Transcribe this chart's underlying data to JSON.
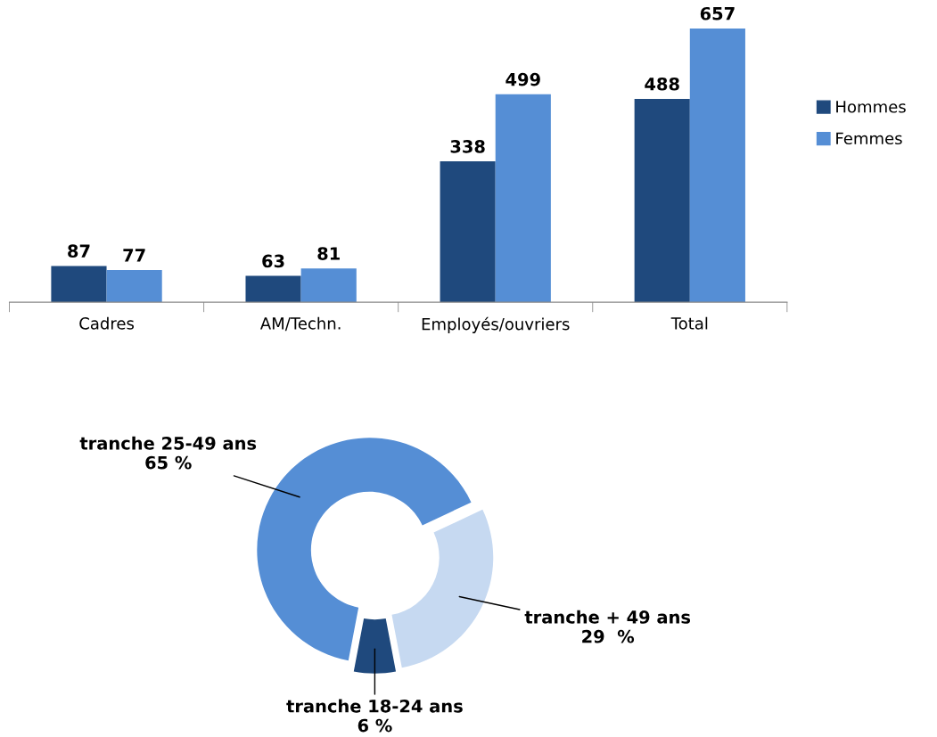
{
  "chart_data": [
    {
      "type": "bar",
      "categories": [
        "Cadres",
        "AM/Techn.",
        "Employés/ouvriers",
        "Total"
      ],
      "series": [
        {
          "name": "Hommes",
          "color": "#1f497d",
          "values": [
            87,
            63,
            338,
            488
          ]
        },
        {
          "name": "Femmes",
          "color": "#558ed5",
          "values": [
            77,
            81,
            499,
            657
          ]
        }
      ],
      "data_labels": true,
      "legend": "right",
      "tick_labels": "x"
    },
    {
      "type": "donut",
      "categories": [
        "tranche 18-24 ans",
        "tranche + 49 ans",
        "tranche 25-49 ans"
      ],
      "values": [
        6,
        29,
        65
      ],
      "value_labels": [
        "6 %",
        "29  %",
        "65 %"
      ],
      "colors": [
        "#1f497d",
        "#c6d9f1",
        "#558ed5"
      ],
      "data_labels": true
    }
  ]
}
